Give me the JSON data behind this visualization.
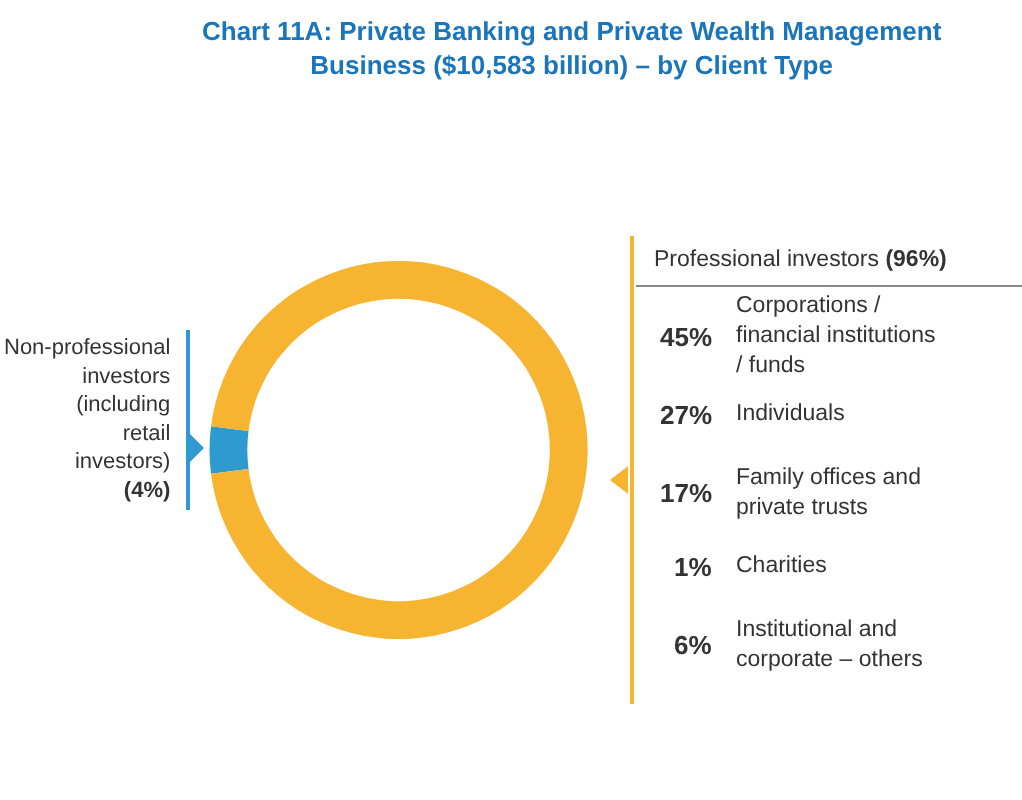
{
  "chart_data": {
    "type": "donut",
    "title": "Chart 11A: Private Banking and Private Wealth Management Business ($10,583 billion) – by Client Type",
    "categories": [
      "Non-professional investors (including retail investors)",
      "Professional investors"
    ],
    "values": [
      4,
      96
    ],
    "value_labels": [
      "(4%)",
      "(96%)"
    ],
    "colors": [
      "#2e9ad0",
      "#f6b431"
    ],
    "legend": false,
    "annotations": [
      "45% Corporations / financial institutions / funds",
      "27% Individuals",
      "17% Family offices and private trusts",
      "1% Charities",
      "6% Institutional and corporate – others"
    ]
  }
}
